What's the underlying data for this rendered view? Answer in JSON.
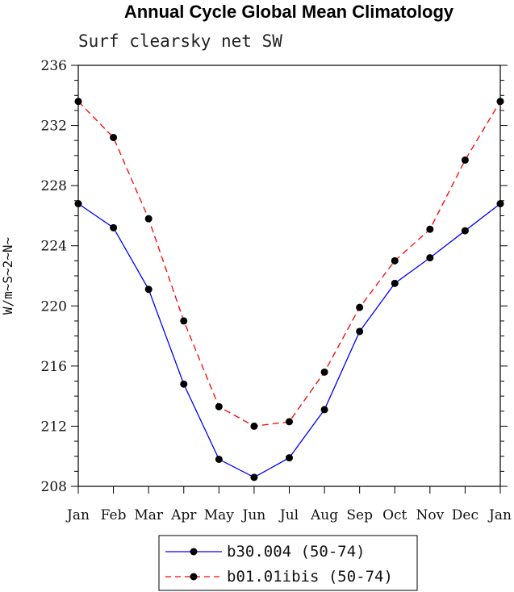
{
  "chart_data": {
    "type": "line",
    "title": "Annual Cycle Global Mean Climatology",
    "subtitle": "Surf clearsky net SW",
    "ylabel": "W/m~S~2~N~",
    "xlabel": "",
    "categories": [
      "Jan",
      "Feb",
      "Mar",
      "Apr",
      "May",
      "Jun",
      "Jul",
      "Aug",
      "Sep",
      "Oct",
      "Nov",
      "Dec",
      "Jan"
    ],
    "ylim": [
      208,
      236
    ],
    "yticks": [
      208,
      212,
      216,
      220,
      224,
      228,
      232,
      236
    ],
    "ytick_labels": [
      "208",
      "212",
      "216",
      "220",
      "224",
      "228",
      "232",
      "236"
    ],
    "grid": false,
    "legend_position": "bottom-center",
    "series": [
      {
        "name": "b30.004 (50-74)",
        "color": "#0000ff",
        "dash": "solid",
        "values": [
          226.8,
          225.2,
          221.1,
          214.8,
          209.8,
          208.6,
          209.9,
          213.1,
          218.3,
          221.5,
          223.2,
          225.0,
          226.8
        ]
      },
      {
        "name": "b01.01ibis (50-74)",
        "color": "#ff0000",
        "dash": "dashed",
        "values": [
          233.6,
          231.2,
          225.8,
          219.0,
          213.3,
          212.0,
          212.3,
          215.6,
          219.9,
          223.0,
          225.1,
          229.7,
          233.6
        ]
      }
    ]
  }
}
